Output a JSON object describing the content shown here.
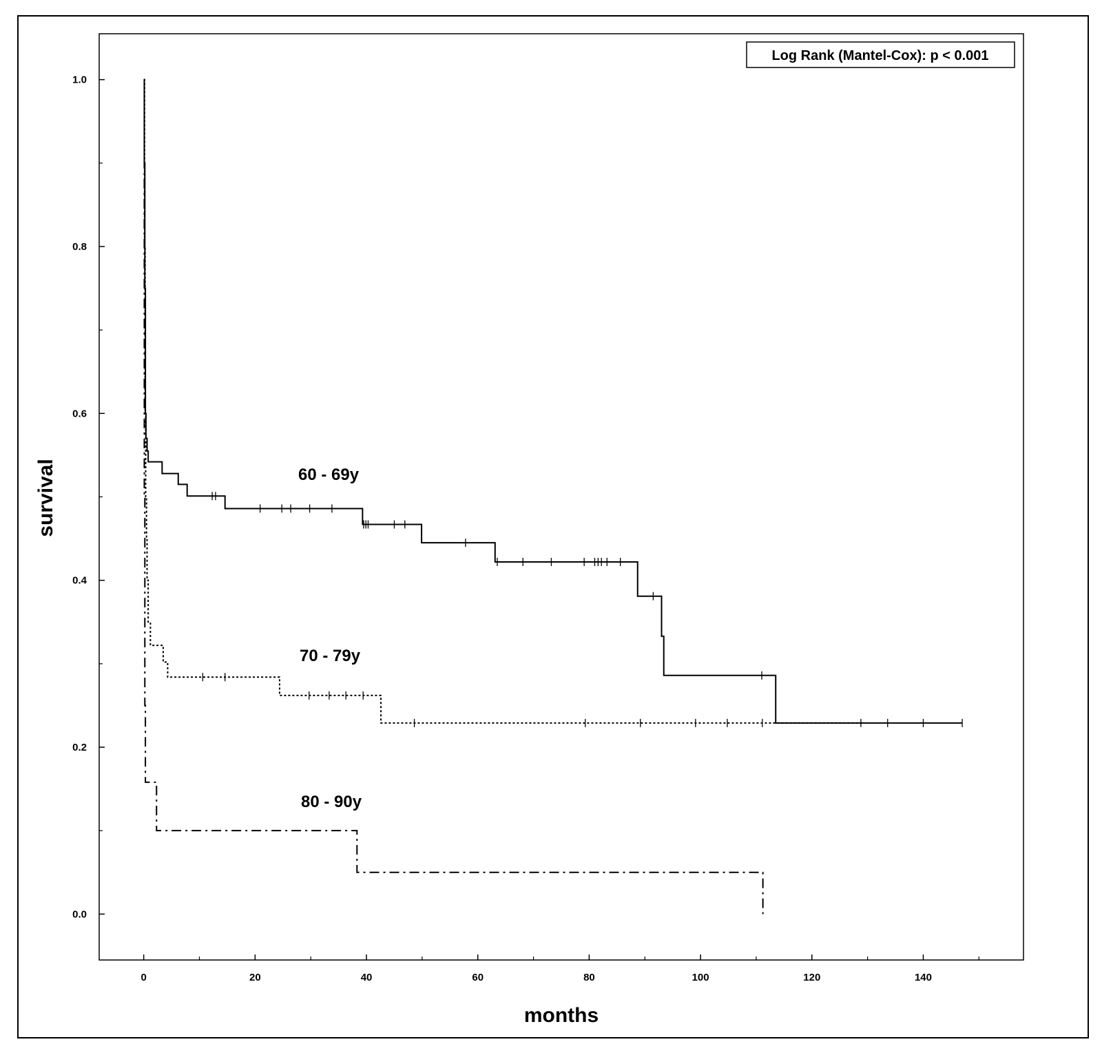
{
  "chart_data": {
    "type": "line",
    "title": "",
    "xlabel": "months",
    "ylabel": "survival",
    "xlim": [
      -8,
      158
    ],
    "ylim": [
      -0.055,
      1.055
    ],
    "x_ticks": [
      0,
      20,
      40,
      60,
      80,
      100,
      120,
      140
    ],
    "x_minor_ticks": [
      10,
      30,
      50,
      70,
      90,
      110,
      130,
      150
    ],
    "y_ticks": [
      0.0,
      0.2,
      0.4,
      0.6,
      0.8,
      1.0
    ],
    "y_tick_labels": [
      "0.0",
      "0.2",
      "0.4",
      "0.6",
      "0.8",
      "1.0"
    ],
    "y_minor_ticks": [
      0.1,
      0.3,
      0.5,
      0.7,
      0.9
    ],
    "grid": false,
    "annotation": "Log Rank (Mantel-Cox): p < 0.001",
    "annotation_position": "top-right",
    "series": [
      {
        "label": "60 - 69y",
        "line_style": "solid",
        "steps": [
          [
            0,
            1.0
          ],
          [
            0.1,
            0.9
          ],
          [
            0.2,
            0.75
          ],
          [
            0.3,
            0.6
          ],
          [
            0.4,
            0.57
          ],
          [
            0.6,
            0.555
          ],
          [
            0.8,
            0.542
          ],
          [
            3.3,
            0.528
          ],
          [
            6.2,
            0.515
          ],
          [
            7.8,
            0.501
          ],
          [
            14.6,
            0.486
          ],
          [
            39.3,
            0.467
          ],
          [
            49.9,
            0.445
          ],
          [
            63.1,
            0.422
          ],
          [
            88.7,
            0.381
          ],
          [
            93.0,
            0.333
          ],
          [
            93.4,
            0.286
          ],
          [
            113.5,
            0.229
          ]
        ],
        "end_x": 147,
        "censored": [
          12.3,
          12.9,
          20.9,
          24.8,
          26.4,
          29.8,
          33.8,
          39.5,
          39.9,
          40.3,
          45.0,
          46.9,
          57.8,
          63.5,
          68.1,
          73.2,
          79.1,
          81.0,
          81.6,
          82.2,
          83.2,
          85.6,
          91.5,
          111.0,
          128.8,
          133.6,
          140.0,
          147.0
        ]
      },
      {
        "label": "70 - 79y",
        "line_style": "dotted",
        "steps": [
          [
            0,
            1.0
          ],
          [
            0.15,
            0.8
          ],
          [
            0.25,
            0.6
          ],
          [
            0.35,
            0.5
          ],
          [
            0.5,
            0.45
          ],
          [
            0.6,
            0.4
          ],
          [
            0.8,
            0.35
          ],
          [
            1.2,
            0.322
          ],
          [
            3.5,
            0.302
          ],
          [
            4.3,
            0.284
          ],
          [
            24.4,
            0.262
          ],
          [
            42.6,
            0.229
          ]
        ],
        "end_x": 129,
        "censored": [
          10.6,
          14.6,
          29.7,
          33.3,
          36.3,
          39.4,
          48.6,
          79.3,
          89.2,
          99.1,
          104.8,
          111.1
        ]
      },
      {
        "label": "80 - 90y",
        "line_style": "dash-dot",
        "steps": [
          [
            0,
            1.0
          ],
          [
            0.1,
            0.5
          ],
          [
            0.2,
            0.25
          ],
          [
            0.3,
            0.158
          ],
          [
            2.3,
            0.1
          ],
          [
            38.3,
            0.05
          ],
          [
            111.2,
            0.0
          ]
        ],
        "end_x": 111.2,
        "censored": []
      }
    ]
  }
}
